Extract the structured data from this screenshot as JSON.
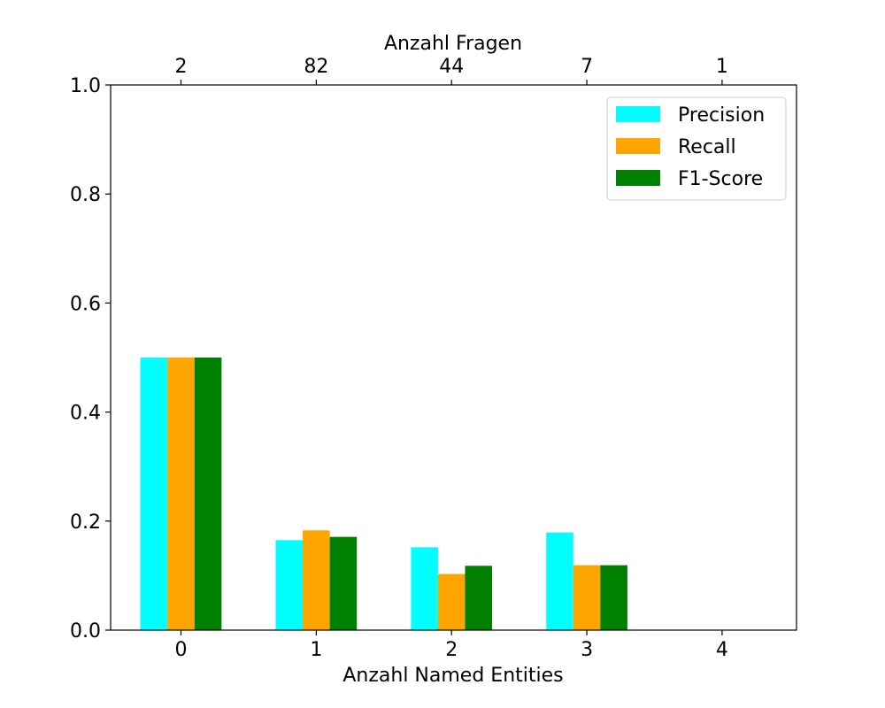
{
  "chart_data": {
    "type": "bar",
    "categories": [
      "0",
      "1",
      "2",
      "3",
      "4"
    ],
    "top_categories": [
      "2",
      "82",
      "44",
      "7",
      "1"
    ],
    "series": [
      {
        "name": "Precision",
        "color": "#00ffff",
        "values": [
          0.5,
          0.165,
          0.152,
          0.179,
          0
        ]
      },
      {
        "name": "Recall",
        "color": "#ffa500",
        "values": [
          0.5,
          0.183,
          0.103,
          0.119,
          0
        ]
      },
      {
        "name": "F1-Score",
        "color": "#008000",
        "values": [
          0.5,
          0.171,
          0.118,
          0.119,
          0
        ]
      }
    ],
    "xlabel": "Anzahl Named Entities",
    "top_xlabel": "Anzahl Fragen",
    "ylabel": "",
    "ylim": [
      0,
      1
    ],
    "yticks": [
      "0.0",
      "0.2",
      "0.4",
      "0.6",
      "0.8",
      "1.0"
    ],
    "grid": false,
    "legend_position": "top-right"
  }
}
